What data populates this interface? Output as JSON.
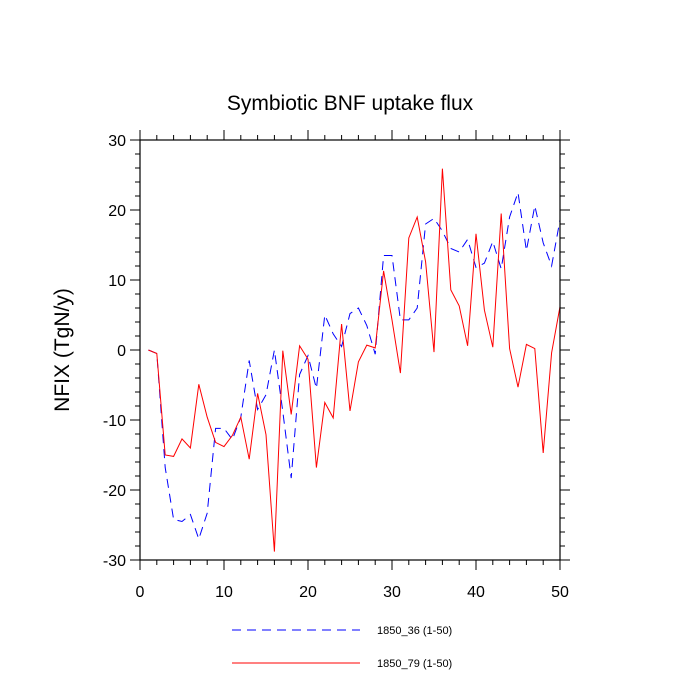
{
  "chart_data": {
    "type": "line",
    "title": "Symbiotic BNF uptake flux",
    "xlabel": "",
    "ylabel": "NFIX  (TgN/y)",
    "xlim": [
      0,
      50
    ],
    "ylim": [
      -30,
      30
    ],
    "xticks": [
      0,
      10,
      20,
      30,
      40,
      50
    ],
    "yticks": [
      -30,
      -20,
      -10,
      0,
      10,
      20,
      30
    ],
    "x_minor_step": 2,
    "y_minor_step": 2,
    "grid": false,
    "legend_position": "bottom",
    "x": [
      1,
      2,
      3,
      4,
      5,
      6,
      7,
      8,
      9,
      10,
      11,
      12,
      13,
      14,
      15,
      16,
      17,
      18,
      19,
      20,
      21,
      22,
      23,
      24,
      25,
      26,
      27,
      28,
      29,
      30,
      31,
      32,
      33,
      34,
      35,
      36,
      37,
      38,
      39,
      40,
      41,
      42,
      43,
      44,
      45,
      46,
      47,
      48,
      49,
      50
    ],
    "series": [
      {
        "name": "1850_36 (1-50)",
        "color": "#0000ff",
        "dash": "dashed",
        "values": [
          0,
          -0.5,
          -16.8,
          -24.2,
          -24.5,
          -23.5,
          -27,
          -23.3,
          -11.2,
          -11.2,
          -12.8,
          -9.6,
          -1.5,
          -8.5,
          -6.4,
          0,
          -8.8,
          -18.3,
          -3.5,
          -0.8,
          -5.5,
          5,
          2.3,
          0.5,
          5.2,
          6,
          3.5,
          -0.6,
          13.5,
          13.5,
          4.3,
          4.3,
          6,
          18,
          18.8,
          17,
          14.5,
          14,
          15.8,
          11.8,
          12.4,
          15.5,
          11.6,
          19,
          22.5,
          14.2,
          20.6,
          15.3,
          12,
          18.6
        ]
      },
      {
        "name": "1850_79 (1-50)",
        "color": "#ff0000",
        "dash": "solid",
        "values": [
          0,
          -0.5,
          -15,
          -15.2,
          -12.7,
          -14,
          -4.9,
          -9.6,
          -13.2,
          -13.8,
          -12.2,
          -9.6,
          -15.6,
          -6.2,
          -12.1,
          -28.8,
          -0.1,
          -9.2,
          0.6,
          -1.3,
          -16.8,
          -7.5,
          -9.7,
          3.7,
          -8.7,
          -1.7,
          0.7,
          0.3,
          11.3,
          4.3,
          -3.3,
          16,
          19,
          12.6,
          -0.3,
          25.9,
          8.6,
          6.3,
          0.6,
          16.6,
          5.7,
          0.4,
          19.5,
          0.2,
          -5.3,
          0.8,
          0.2,
          -14.7,
          -0.4,
          6.2
        ]
      }
    ]
  }
}
